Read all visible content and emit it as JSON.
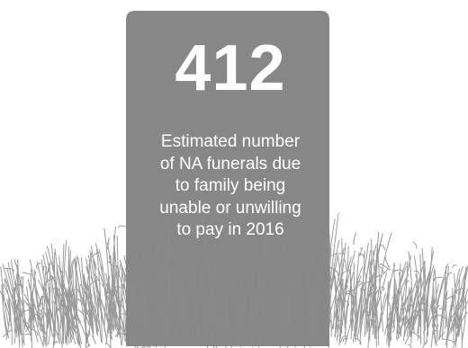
{
  "headstone": {
    "number": "412",
    "caption_lines": [
      "Estimated number",
      "of NA funerals due",
      "to family being",
      "unable or unwilling",
      "to pay in 2016"
    ]
  },
  "colors": {
    "stone": "#878787",
    "grass": "#8a8a8a",
    "text": "#ffffff"
  },
  "icons": [
    "headstone-icon",
    "grass-icon"
  ]
}
